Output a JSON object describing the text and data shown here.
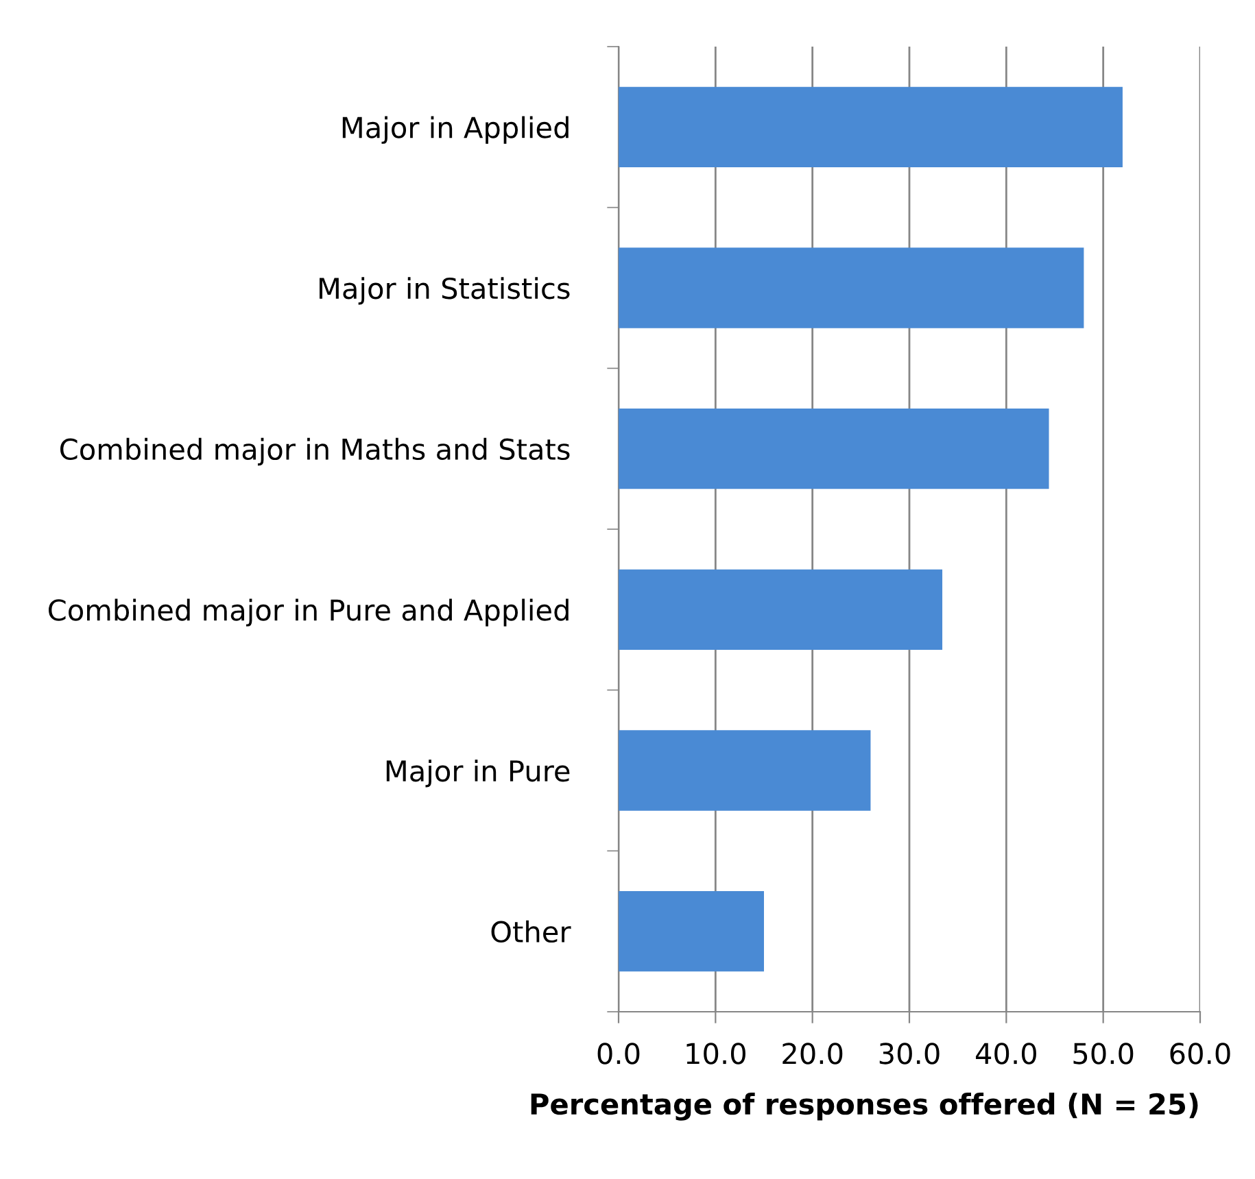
{
  "chart_data": {
    "type": "bar",
    "orientation": "horizontal",
    "xlabel": "Percentage of responses offered (N = 25)",
    "categories": [
      "Major in Applied",
      "Major in Statistics",
      "Combined major in Maths and Stats",
      "Combined major in Pure and Applied",
      "Major in Pure",
      "Other"
    ],
    "values": [
      52.0,
      48.0,
      44.4,
      33.4,
      26.0,
      15.0
    ],
    "color": "#4a8ad4",
    "xlim": [
      0,
      60
    ],
    "xticks": [
      {
        "value": 0,
        "label": "0.0"
      },
      {
        "value": 10,
        "label": "10.0"
      },
      {
        "value": 20,
        "label": "20.0"
      },
      {
        "value": 30,
        "label": "30.0"
      },
      {
        "value": 40,
        "label": "40.0"
      },
      {
        "value": 50,
        "label": "50.0"
      },
      {
        "value": 60,
        "label": "60.0"
      }
    ],
    "grid": "x"
  }
}
